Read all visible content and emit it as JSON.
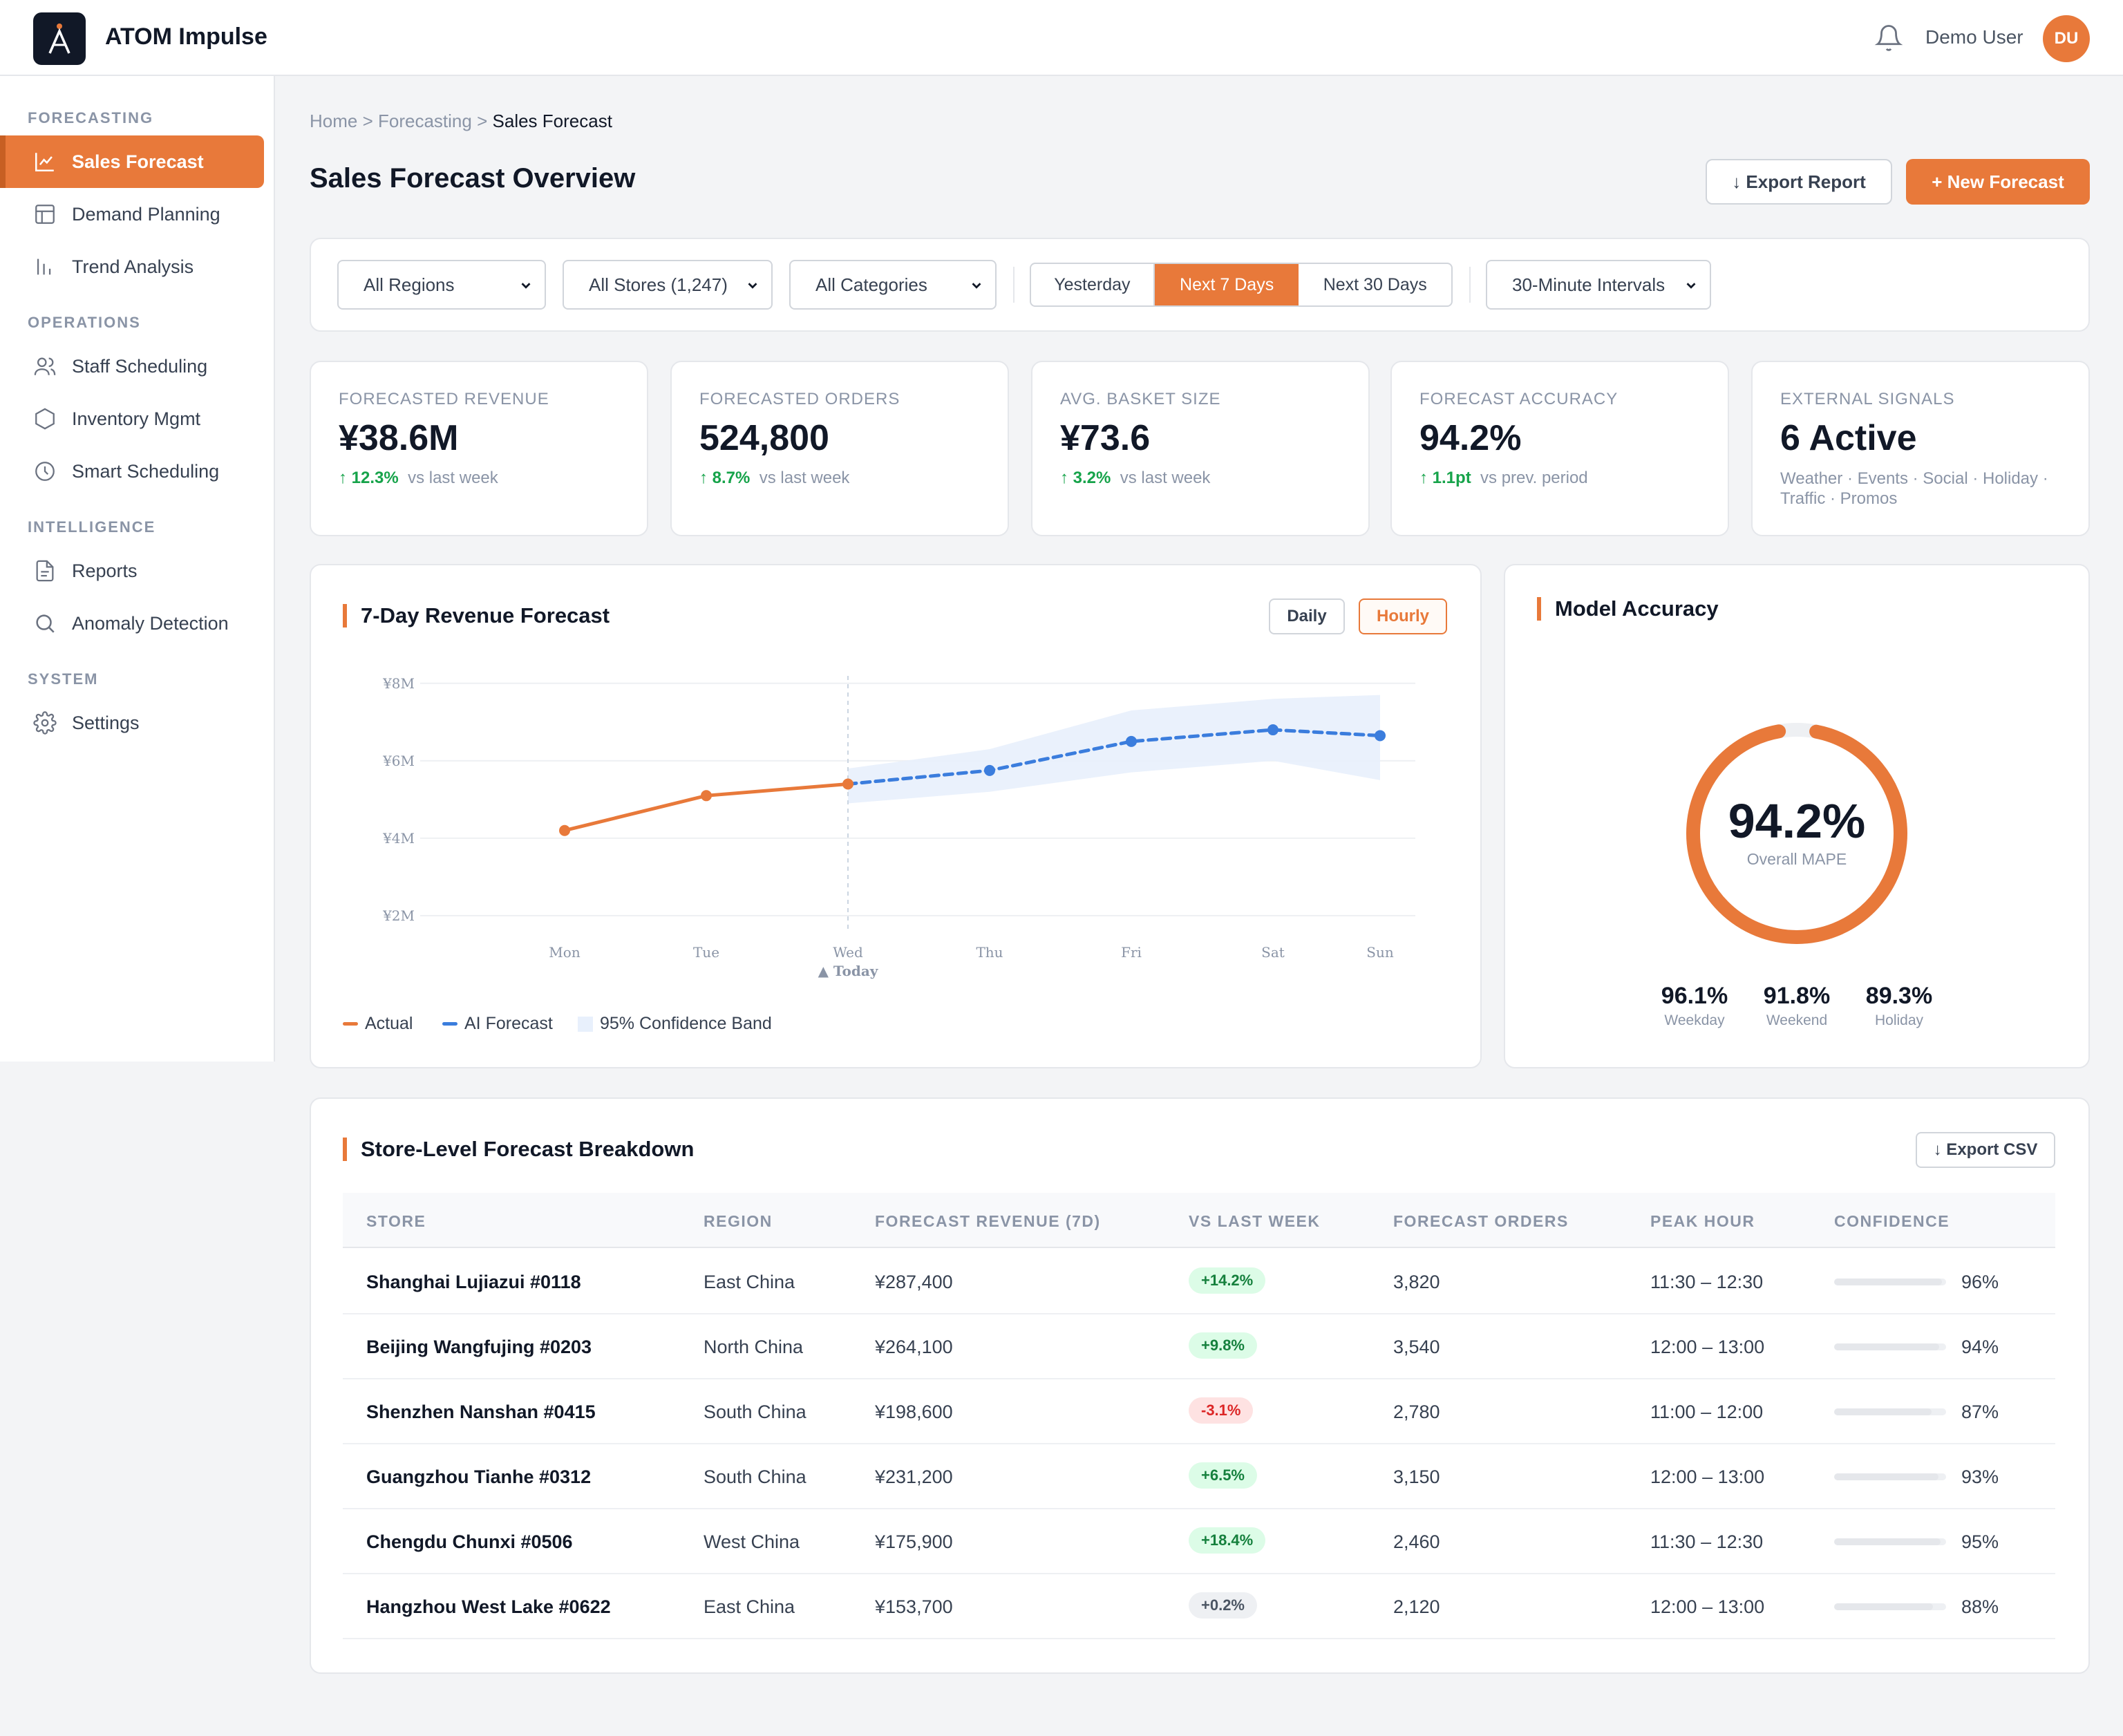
{
  "app": {
    "name": "ATOM Impulse",
    "logo_letter": "A"
  },
  "header": {
    "user_name": "Demo User",
    "user_initials": "DU"
  },
  "sidebar": {
    "sections": [
      {
        "title": "FORECASTING",
        "items": [
          {
            "label": "Sales Forecast",
            "icon": "line-chart-icon",
            "active": true
          },
          {
            "label": "Demand Planning",
            "icon": "table-icon"
          },
          {
            "label": "Trend Analysis",
            "icon": "bar-chart-icon"
          }
        ]
      },
      {
        "title": "OPERATIONS",
        "items": [
          {
            "label": "Staff Scheduling",
            "icon": "users-icon"
          },
          {
            "label": "Inventory Mgmt",
            "icon": "hexagon-icon"
          },
          {
            "label": "Smart Scheduling",
            "icon": "clock-icon"
          }
        ]
      },
      {
        "title": "INTELLIGENCE",
        "items": [
          {
            "label": "Reports",
            "icon": "document-icon"
          },
          {
            "label": "Anomaly Detection",
            "icon": "search-icon"
          }
        ]
      },
      {
        "title": "SYSTEM",
        "items": [
          {
            "label": "Settings",
            "icon": "gear-icon"
          }
        ]
      }
    ]
  },
  "breadcrumb": {
    "home": "Home",
    "sep": ">",
    "parent": "Forecasting",
    "current": "Sales Forecast"
  },
  "page": {
    "title": "Sales Forecast Overview",
    "export_report": "↓ Export Report",
    "new_forecast": "+ New Forecast"
  },
  "filters": {
    "region": "All Regions",
    "stores": "All Stores (1,247)",
    "categories": "All Categories",
    "range_options": [
      "Yesterday",
      "Next 7 Days",
      "Next 30 Days"
    ],
    "range_selected": "Next 7 Days",
    "interval": "30-Minute Intervals"
  },
  "kpis": [
    {
      "label": "FORECASTED REVENUE",
      "value": "¥38.6M",
      "change": "↑ 12.3%",
      "period": "vs last week"
    },
    {
      "label": "FORECASTED ORDERS",
      "value": "524,800",
      "change": "↑ 8.7%",
      "period": "vs last week"
    },
    {
      "label": "AVG. BASKET SIZE",
      "value": "¥73.6",
      "change": "↑ 3.2%",
      "period": "vs last week"
    },
    {
      "label": "FORECAST ACCURACY",
      "value": "94.2%",
      "change": "↑ 1.1pt",
      "period": "vs prev. period"
    },
    {
      "label": "EXTERNAL SIGNALS",
      "value": "6 Active",
      "signals": "Weather · Events · Social · Holiday · Traffic · Promos"
    }
  ],
  "revenue_chart": {
    "title": "7-Day Revenue Forecast",
    "toggle_daily": "Daily",
    "toggle_hourly": "Hourly",
    "today_marker": "▲ Today",
    "legend_actual": "Actual",
    "legend_forecast": "AI Forecast",
    "legend_band": "95% Confidence Band"
  },
  "chart_data": {
    "type": "line",
    "title": "7-Day Revenue Forecast",
    "categories": [
      "Mon",
      "Tue",
      "Wed",
      "Thu",
      "Fri",
      "Sat",
      "Sun"
    ],
    "y_ticks": [
      "¥2M",
      "¥4M",
      "¥6M",
      "¥8M"
    ],
    "ylim": [
      2,
      8
    ],
    "ylabel": "",
    "series": [
      {
        "name": "Actual",
        "x": [
          "Mon",
          "Tue",
          "Wed"
        ],
        "values": [
          4.2,
          5.1,
          5.4
        ]
      },
      {
        "name": "AI Forecast",
        "x": [
          "Wed",
          "Thu",
          "Fri",
          "Sat",
          "Sun"
        ],
        "values": [
          5.4,
          5.75,
          6.5,
          6.8,
          6.65
        ]
      }
    ],
    "confidence_band": {
      "name": "95% Confidence Band",
      "x": [
        "Wed",
        "Thu",
        "Fri",
        "Sat",
        "Sun"
      ],
      "upper": [
        5.8,
        6.3,
        7.3,
        7.6,
        7.7
      ],
      "lower": [
        4.9,
        5.2,
        5.7,
        6.0,
        5.5
      ]
    }
  },
  "accuracy": {
    "title": "Model Accuracy",
    "overall": "94.2%",
    "overall_value": 94.2,
    "overall_label": "Overall MAPE",
    "breakdown": [
      {
        "value": "96.1%",
        "label": "Weekday"
      },
      {
        "value": "91.8%",
        "label": "Weekend"
      },
      {
        "value": "89.3%",
        "label": "Holiday"
      }
    ]
  },
  "table": {
    "title": "Store-Level Forecast Breakdown",
    "export_csv": "↓ Export CSV",
    "columns": [
      "STORE",
      "REGION",
      "FORECAST REVENUE (7D)",
      "VS LAST WEEK",
      "FORECAST ORDERS",
      "PEAK HOUR",
      "CONFIDENCE"
    ],
    "rows": [
      {
        "store": "Shanghai Lujiazui #0118",
        "region": "East China",
        "revenue": "¥287,400",
        "change": "+14.2%",
        "trend": "pos",
        "orders": "3,820",
        "peak": "11:30 – 12:30",
        "confidence": "96%",
        "conf_value": 96
      },
      {
        "store": "Beijing Wangfujing #0203",
        "region": "North China",
        "revenue": "¥264,100",
        "change": "+9.8%",
        "trend": "pos",
        "orders": "3,540",
        "peak": "12:00 – 13:00",
        "confidence": "94%",
        "conf_value": 94
      },
      {
        "store": "Shenzhen Nanshan #0415",
        "region": "South China",
        "revenue": "¥198,600",
        "change": "-3.1%",
        "trend": "neg",
        "orders": "2,780",
        "peak": "11:00 – 12:00",
        "confidence": "87%",
        "conf_value": 87
      },
      {
        "store": "Guangzhou Tianhe #0312",
        "region": "South China",
        "revenue": "¥231,200",
        "change": "+6.5%",
        "trend": "pos",
        "orders": "3,150",
        "peak": "12:00 – 13:00",
        "confidence": "93%",
        "conf_value": 93
      },
      {
        "store": "Chengdu Chunxi #0506",
        "region": "West China",
        "revenue": "¥175,900",
        "change": "+18.4%",
        "trend": "pos",
        "orders": "2,460",
        "peak": "11:30 – 12:30",
        "confidence": "95%",
        "conf_value": 95
      },
      {
        "store": "Hangzhou West Lake #0622",
        "region": "East China",
        "revenue": "¥153,700",
        "change": "+0.2%",
        "trend": "neu",
        "orders": "2,120",
        "peak": "12:00 – 13:00",
        "confidence": "88%",
        "conf_value": 88
      }
    ]
  },
  "colors": {
    "accent": "#e8793a",
    "forecast": "#3b7ddd",
    "band": "#e8f0fc",
    "positive": "#16a34a",
    "negative": "#dc2626"
  }
}
